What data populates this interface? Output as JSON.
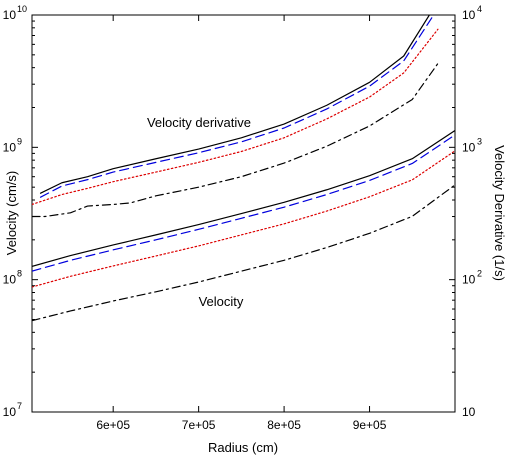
{
  "chart_data": {
    "type": "line",
    "xlabel": "Radius (cm)",
    "ylabel_left": "Velocity (cm/s)",
    "ylabel_right": "Velocity Derivative (1/s)",
    "x_range": [
      505000,
      1000000
    ],
    "x_ticks": [
      {
        "value": 600000,
        "label": "6e+05"
      },
      {
        "value": 700000,
        "label": "7e+05"
      },
      {
        "value": 800000,
        "label": "8e+05"
      },
      {
        "value": 900000,
        "label": "9e+05"
      }
    ],
    "left_axis": {
      "scale": "log",
      "range": [
        10000000,
        10000000000
      ],
      "ticks": [
        {
          "value": 10000000,
          "base": "10",
          "exp": "7"
        },
        {
          "value": 100000000,
          "base": "10",
          "exp": "8"
        },
        {
          "value": 1000000000,
          "base": "10",
          "exp": "9"
        },
        {
          "value": 10000000000,
          "base": "10",
          "exp": "10"
        }
      ]
    },
    "right_axis": {
      "scale": "log",
      "range": [
        10,
        10000
      ],
      "ticks": [
        {
          "value": 10,
          "base": "10",
          "exp": ""
        },
        {
          "value": 100,
          "base": "10",
          "exp": "2"
        },
        {
          "value": 1000,
          "base": "10",
          "exp": "3"
        },
        {
          "value": 10000,
          "base": "10",
          "exp": "4"
        }
      ]
    },
    "annotations": {
      "velocity_derivative": "Velocity derivative",
      "velocity": "Velocity"
    },
    "series": [
      {
        "group": "velocity",
        "axis": "left",
        "color": "#000000",
        "style": "solid",
        "x": [
          505000,
          550000,
          600000,
          650000,
          700000,
          750000,
          800000,
          850000,
          900000,
          950000,
          1000000
        ],
        "y": [
          126000000,
          152000000,
          183000000,
          218000000,
          261000000,
          316000000,
          384000000,
          478000000,
          611000000,
          820000000,
          1340000000
        ]
      },
      {
        "group": "velocity",
        "axis": "left",
        "color": "#0000dd",
        "style": "dashed",
        "x": [
          505000,
          550000,
          600000,
          650000,
          700000,
          750000,
          800000,
          850000,
          900000,
          950000,
          1000000
        ],
        "y": [
          116000000,
          140000000,
          168000000,
          200000000,
          240000000,
          291000000,
          353000000,
          440000000,
          562000000,
          755000000,
          1240000000
        ]
      },
      {
        "group": "velocity",
        "axis": "left",
        "color": "#dd0000",
        "style": "dotted",
        "x": [
          505000,
          550000,
          600000,
          650000,
          700000,
          750000,
          800000,
          850000,
          900000,
          950000,
          1000000
        ],
        "y": [
          88000000,
          106000000,
          127000000,
          151000000,
          180000000,
          218000000,
          264000000,
          330000000,
          423000000,
          568000000,
          940000000
        ]
      },
      {
        "group": "velocity",
        "axis": "left",
        "color": "#000000",
        "style": "dashdot",
        "x": [
          505000,
          550000,
          600000,
          650000,
          700000,
          750000,
          800000,
          850000,
          900000,
          950000,
          1000000
        ],
        "y": [
          49000000,
          58000000,
          69000000,
          81000000,
          96000000,
          116000000,
          140000000,
          175000000,
          224000000,
          301000000,
          520000000
        ]
      },
      {
        "group": "velocity_derivative",
        "axis": "right",
        "color": "#000000",
        "style": "solid",
        "x": [
          515000,
          540000,
          570000,
          600000,
          650000,
          700000,
          750000,
          800000,
          850000,
          900000,
          940000,
          970000
        ],
        "y": [
          450,
          540,
          600,
          690,
          820,
          970,
          1180,
          1500,
          2080,
          3100,
          4900,
          10000
        ]
      },
      {
        "group": "velocity_derivative",
        "axis": "right",
        "color": "#0000dd",
        "style": "dashed",
        "x": [
          515000,
          540000,
          570000,
          600000,
          650000,
          700000,
          750000,
          800000,
          850000,
          900000,
          940000,
          975000
        ],
        "y": [
          420,
          510,
          570,
          650,
          770,
          910,
          1100,
          1400,
          1950,
          2900,
          4500,
          10000
        ]
      },
      {
        "group": "velocity_derivative",
        "axis": "right",
        "color": "#dd0000",
        "style": "dotted",
        "x": [
          505000,
          540000,
          570000,
          600000,
          650000,
          700000,
          750000,
          800000,
          850000,
          900000,
          940000,
          980000
        ],
        "y": [
          370,
          440,
          490,
          550,
          650,
          770,
          930,
          1180,
          1640,
          2400,
          3650,
          7800
        ]
      },
      {
        "group": "velocity_derivative",
        "axis": "right",
        "color": "#000000",
        "style": "dashdot",
        "x": [
          505000,
          520000,
          550000,
          570000,
          600000,
          620000,
          650000,
          700000,
          750000,
          800000,
          850000,
          900000,
          950000,
          980000
        ],
        "y": [
          300,
          300,
          320,
          360,
          370,
          380,
          430,
          500,
          600,
          760,
          1020,
          1450,
          2300,
          4300
        ]
      }
    ]
  }
}
